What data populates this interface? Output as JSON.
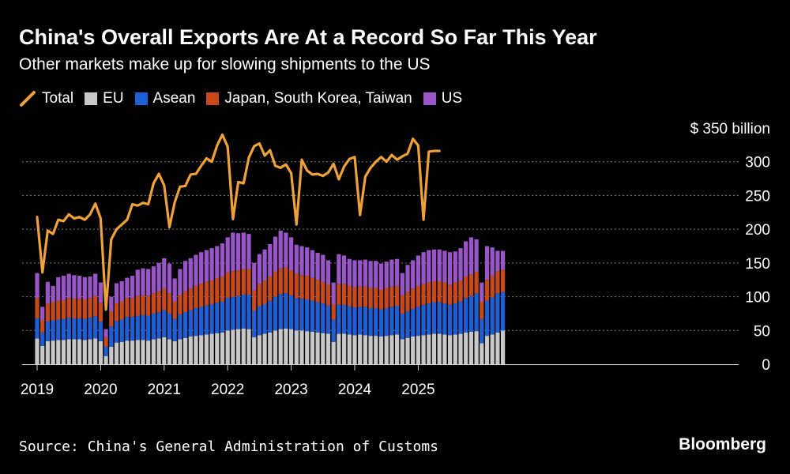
{
  "header": {
    "title": "China's Overall Exports Are At a Record So Far This Year",
    "subtitle": "Other markets make up for slowing shipments to the US"
  },
  "legend": [
    {
      "label": "Total",
      "color": "#f0a23a",
      "kind": "line"
    },
    {
      "label": "EU",
      "color": "#c8c8c8",
      "kind": "box"
    },
    {
      "label": "Asean",
      "color": "#1f5fd6",
      "kind": "box"
    },
    {
      "label": "Japan, South Korea, Taiwan",
      "color": "#c84a1c",
      "kind": "box"
    },
    {
      "label": "US",
      "color": "#9a55c8",
      "kind": "box"
    }
  ],
  "footer": {
    "source": "Source: China's General Administration of Customs",
    "brand": "Bloomberg"
  },
  "chart_data": {
    "type": "bar",
    "stacked": true,
    "y_unit_label": "$ 350 billion",
    "ylim": [
      0,
      350
    ],
    "yticks": [
      0,
      50,
      100,
      150,
      200,
      250,
      300,
      350
    ],
    "x_tick_labels": [
      "2019",
      "2020",
      "2021",
      "2022",
      "2023",
      "2024",
      "2025"
    ],
    "months_start": "2019-01",
    "series": [
      {
        "name": "EU",
        "color": "#c8c8c8",
        "values": [
          38,
          27,
          34,
          35,
          36,
          36,
          37,
          37,
          37,
          36,
          37,
          38,
          34,
          12,
          26,
          32,
          33,
          35,
          35,
          36,
          36,
          35,
          37,
          38,
          40,
          37,
          34,
          37,
          39,
          41,
          42,
          43,
          44,
          45,
          46,
          47,
          50,
          51,
          52,
          53,
          52,
          40,
          43,
          45,
          47,
          50,
          52,
          53,
          52,
          50,
          50,
          49,
          48,
          47,
          46,
          45,
          33,
          45,
          45,
          44,
          43,
          44,
          43,
          42,
          42,
          41,
          42,
          43,
          44,
          37,
          39,
          41,
          42,
          43,
          44,
          45,
          45,
          44,
          43,
          44,
          45,
          47,
          48,
          49,
          31,
          42,
          44,
          47,
          50
        ]
      },
      {
        "name": "Asean",
        "color": "#1f5fd6",
        "values": [
          30,
          20,
          29,
          30,
          30,
          31,
          32,
          31,
          31,
          31,
          32,
          33,
          29,
          14,
          30,
          32,
          33,
          35,
          35,
          36,
          37,
          37,
          38,
          39,
          40,
          38,
          33,
          37,
          38,
          39,
          41,
          42,
          43,
          44,
          45,
          46,
          48,
          49,
          49,
          50,
          51,
          39,
          43,
          44,
          47,
          50,
          52,
          52,
          50,
          48,
          47,
          47,
          46,
          45,
          44,
          42,
          33,
          43,
          43,
          42,
          41,
          41,
          42,
          41,
          41,
          40,
          41,
          42,
          42,
          38,
          39,
          41,
          43,
          45,
          46,
          47,
          47,
          46,
          45,
          46,
          48,
          51,
          53,
          56,
          36,
          52,
          55,
          58,
          57
        ]
      },
      {
        "name": "Japan, South Korea, Taiwan",
        "color": "#c84a1c",
        "values": [
          30,
          18,
          27,
          27,
          28,
          28,
          29,
          29,
          29,
          29,
          29,
          30,
          28,
          14,
          22,
          26,
          27,
          28,
          28,
          29,
          29,
          29,
          30,
          31,
          32,
          30,
          26,
          29,
          31,
          32,
          33,
          34,
          35,
          35,
          36,
          37,
          38,
          38,
          38,
          38,
          38,
          30,
          33,
          35,
          36,
          37,
          38,
          38,
          37,
          36,
          35,
          35,
          34,
          33,
          32,
          31,
          23,
          31,
          31,
          30,
          30,
          30,
          30,
          30,
          30,
          29,
          30,
          30,
          30,
          27,
          29,
          30,
          31,
          31,
          31,
          31,
          31,
          31,
          30,
          31,
          31,
          32,
          32,
          32,
          26,
          31,
          32,
          33,
          33
        ]
      },
      {
        "name": "US",
        "color": "#9a55c8",
        "values": [
          37,
          20,
          32,
          24,
          35,
          36,
          36,
          35,
          34,
          33,
          32,
          33,
          30,
          12,
          22,
          30,
          30,
          30,
          33,
          39,
          40,
          40,
          40,
          42,
          45,
          44,
          34,
          38,
          45,
          45,
          46,
          47,
          47,
          48,
          48,
          49,
          52,
          57,
          55,
          54,
          52,
          41,
          44,
          46,
          48,
          52,
          56,
          52,
          49,
          43,
          43,
          42,
          41,
          40,
          40,
          36,
          32,
          44,
          42,
          40,
          40,
          39,
          40,
          40,
          40,
          39,
          39,
          40,
          40,
          33,
          40,
          42,
          45,
          47,
          48,
          47,
          47,
          47,
          48,
          46,
          48,
          52,
          55,
          48,
          28,
          50,
          42,
          30,
          28
        ]
      },
      {
        "name": "Total",
        "color": "#f0a23a",
        "type": "line",
        "values": [
          218,
          136,
          198,
          193,
          214,
          212,
          222,
          216,
          218,
          214,
          222,
          238,
          216,
          81,
          185,
          200,
          207,
          214,
          237,
          235,
          239,
          237,
          268,
          282,
          265,
          203,
          240,
          263,
          264,
          281,
          282,
          294,
          305,
          300,
          324,
          340,
          322,
          215,
          270,
          268,
          306,
          323,
          327,
          309,
          317,
          294,
          291,
          296,
          283,
          207,
          303,
          287,
          281,
          282,
          279,
          284,
          297,
          274,
          293,
          304,
          307,
          221,
          278,
          291,
          300,
          307,
          300,
          310,
          303,
          308,
          312,
          334,
          324,
          214,
          315,
          316,
          316
        ]
      }
    ]
  }
}
